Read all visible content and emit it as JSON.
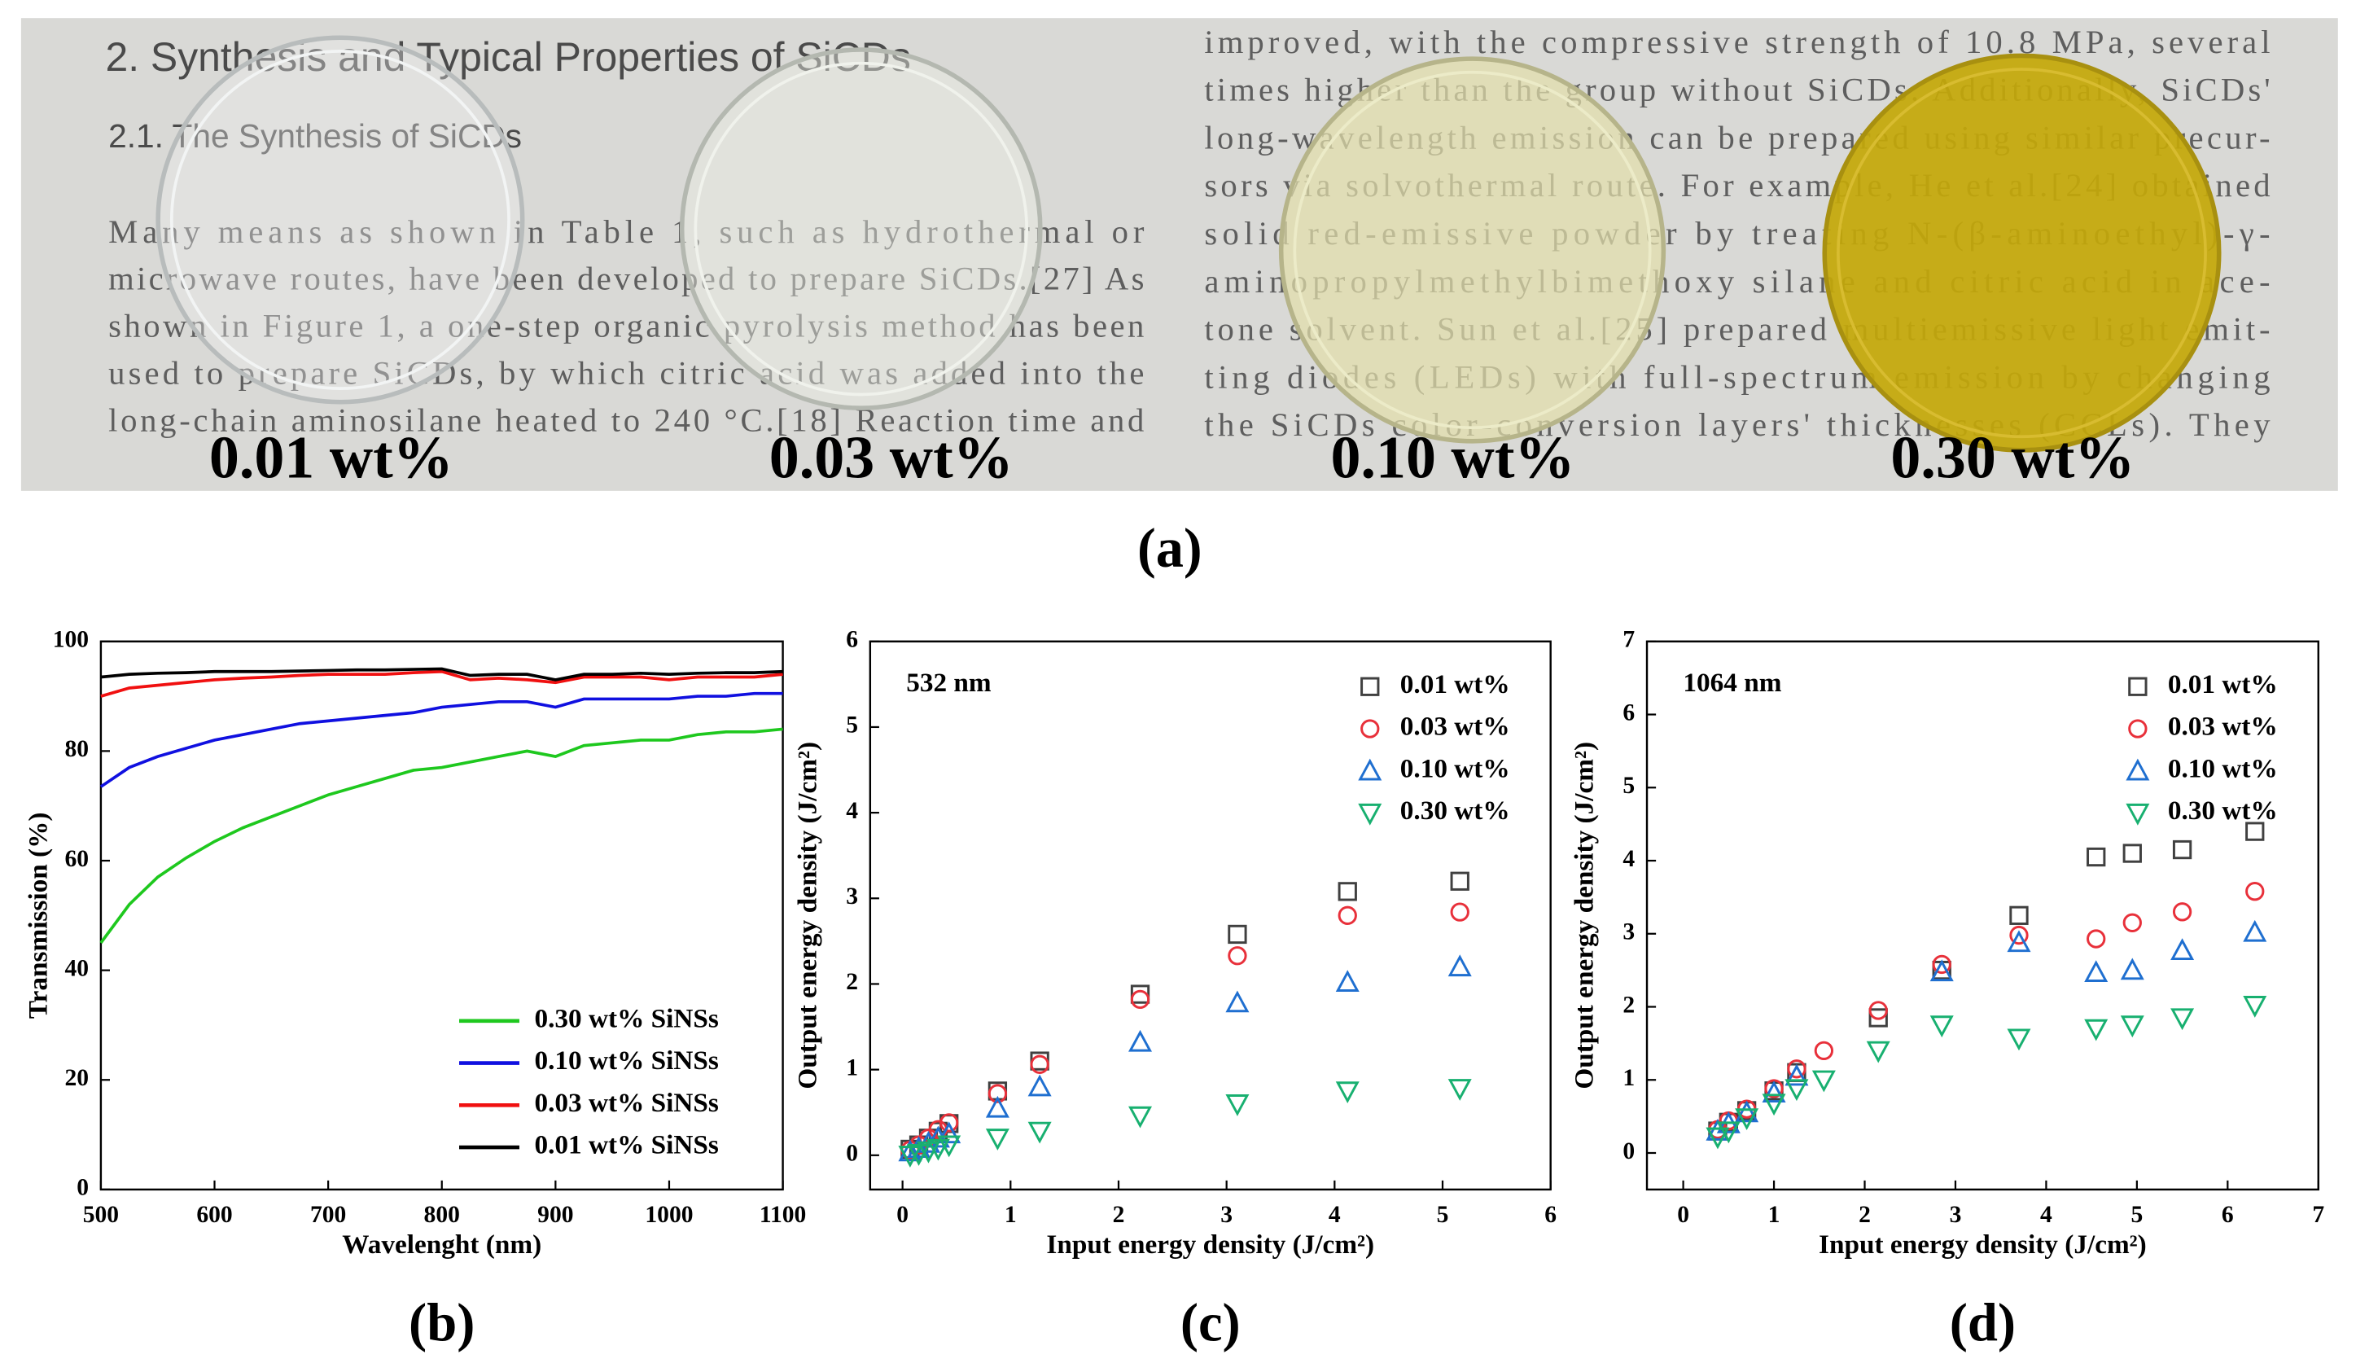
{
  "photo": {
    "heading": "2. Synthesis and Typical Properties of SiCDs",
    "subheading": "2.1. The Synthesis of SiCDs",
    "left_lines": [
      "Many means as shown in Table 1, such as hydrothermal or",
      "microwave routes, have been developed to prepare SiCDs.[27] As",
      "shown in Figure 1, a one-step organic pyrolysis method has been",
      "used to prepare SiCDs, by which citric acid was added into the",
      "long-chain aminosilane heated to 240 °C.[18] Reaction time and"
    ],
    "right_lines": [
      "improved, with the compressive strength of 10.8 MPa, several",
      "times higher than the group without SiCDs. Additionally, SiCDs'",
      "long-wavelength emission can be prepared using similar precur-",
      "sors via solvothermal route. For example, He et al.[24] obtained",
      "solid red-emissive powder by treating N-(β-aminoethyl)-γ-",
      "aminopropylmethylbimethoxy silane and citric acid in ace-",
      "tone solvent. Sun et al.[25] prepared multiemissive light emit-",
      "ting diodes (LEDs) with full-spectrum emission by changing",
      "the SiCDs color-conversion layers' thicknesses (CCLs). They"
    ],
    "sample_labels": [
      "0.01 wt%",
      "0.03 wt%",
      "0.10 wt%",
      "0.30 wt%"
    ],
    "panel_label": "(a)"
  },
  "chart_data": [
    {
      "type": "line",
      "panel_label": "(b)",
      "xlabel": "Wavelenght (nm)",
      "ylabel": "Transmission (%)",
      "x": [
        500,
        525,
        550,
        575,
        600,
        625,
        650,
        675,
        700,
        725,
        750,
        775,
        800,
        825,
        850,
        875,
        900,
        925,
        950,
        975,
        1000,
        1025,
        1050,
        1075,
        1100
      ],
      "xlim": [
        500,
        1100
      ],
      "ylim": [
        0,
        100
      ],
      "xticks": [
        500,
        600,
        700,
        800,
        900,
        1000,
        1100
      ],
      "yticks": [
        0,
        20,
        40,
        60,
        80,
        100
      ],
      "legend": "lower right",
      "series": [
        {
          "name": "0.30 wt% SiNSs",
          "color": "#1ec81e",
          "values": [
            45,
            52,
            57,
            60.5,
            63.5,
            66,
            68,
            70,
            72,
            73.5,
            75,
            76.5,
            77,
            78,
            79,
            80,
            79,
            81,
            81.5,
            82,
            82,
            83,
            83.5,
            83.5,
            84
          ]
        },
        {
          "name": "0.10 wt% SiNSs",
          "color": "#1010e0",
          "values": [
            73.5,
            77,
            79,
            80.5,
            82,
            83,
            84,
            85,
            85.5,
            86,
            86.5,
            87,
            88,
            88.5,
            89,
            89,
            88,
            89.5,
            89.5,
            89.5,
            89.5,
            90,
            90,
            90.5,
            90.5
          ]
        },
        {
          "name": "0.03 wt% SiNSs",
          "color": "#f01010",
          "values": [
            90,
            91.5,
            92,
            92.5,
            93,
            93.3,
            93.5,
            93.8,
            94,
            94,
            94,
            94.3,
            94.5,
            93,
            93.3,
            93,
            92.5,
            93.5,
            93.5,
            93.5,
            93,
            93.5,
            93.5,
            93.5,
            94
          ]
        },
        {
          "name": "0.01 wt% SiNSs",
          "color": "#000000",
          "values": [
            93.5,
            94,
            94.2,
            94.3,
            94.5,
            94.5,
            94.5,
            94.6,
            94.7,
            94.8,
            94.8,
            94.9,
            95,
            93.8,
            94,
            94,
            93,
            94,
            94,
            94.2,
            94,
            94.2,
            94.3,
            94.3,
            94.5
          ]
        }
      ]
    },
    {
      "type": "scatter",
      "panel_label": "(c)",
      "annotation": "532 nm",
      "xlabel": "Input energy density (J/cm²)",
      "ylabel": "Output energy density (J/cm²)",
      "x": [
        0.07,
        0.15,
        0.24,
        0.33,
        0.43,
        0.88,
        1.27,
        2.2,
        3.1,
        4.12,
        5.16
      ],
      "xlim": [
        -0.3,
        6
      ],
      "ylim": [
        -0.4,
        6
      ],
      "xticks": [
        0,
        1,
        2,
        3,
        4,
        5,
        6
      ],
      "yticks": [
        0,
        1,
        2,
        3,
        4,
        5,
        6
      ],
      "legend": "upper right",
      "series": [
        {
          "name": "0.01 wt%",
          "color": "#404040",
          "marker": "square",
          "values": [
            0.07,
            0.12,
            0.2,
            0.28,
            0.37,
            0.75,
            1.1,
            1.88,
            2.58,
            3.08,
            3.2
          ]
        },
        {
          "name": "0.03 wt%",
          "color": "#e8303a",
          "marker": "circle",
          "values": [
            0.06,
            0.12,
            0.2,
            0.3,
            0.38,
            0.72,
            1.06,
            1.82,
            2.33,
            2.8,
            2.84
          ]
        },
        {
          "name": "0.10 wt%",
          "color": "#1f6fd0",
          "marker": "triangle-up",
          "values": [
            0.04,
            0.08,
            0.14,
            0.2,
            0.25,
            0.55,
            0.8,
            1.32,
            1.78,
            2.02,
            2.2
          ]
        },
        {
          "name": "0.30 wt%",
          "color": "#18b070",
          "marker": "triangle-down",
          "values": [
            0,
            0.02,
            0.05,
            0.08,
            0.12,
            0.2,
            0.28,
            0.46,
            0.6,
            0.75,
            0.78
          ]
        }
      ]
    },
    {
      "type": "scatter",
      "panel_label": "(d)",
      "annotation": "1064 nm",
      "xlabel": "Input energy density (J/cm²)",
      "ylabel": "Output energy density (J/cm²)",
      "x": [
        0.38,
        0.5,
        0.7,
        1.0,
        1.25,
        1.55,
        2.15,
        2.85,
        3.7,
        4.55,
        4.95,
        5.5,
        6.3
      ],
      "xlim": [
        -0.4,
        7
      ],
      "ylim": [
        -0.5,
        7
      ],
      "xticks": [
        0,
        1,
        2,
        3,
        4,
        5,
        6,
        7
      ],
      "yticks": [
        0,
        1,
        2,
        3,
        4,
        5,
        6,
        7
      ],
      "legend": "upper right",
      "series": [
        {
          "name": "0.01 wt%",
          "color": "#404040",
          "marker": "square",
          "values": [
            0.3,
            0.42,
            0.58,
            0.85,
            1.1,
            null,
            1.85,
            2.5,
            3.25,
            4.05,
            4.1,
            4.15,
            4.4
          ]
        },
        {
          "name": "0.03 wt%",
          "color": "#e8303a",
          "marker": "circle",
          "values": [
            0.32,
            0.44,
            0.6,
            0.88,
            1.15,
            1.4,
            1.95,
            2.58,
            2.98,
            2.93,
            3.15,
            3.3,
            3.58
          ]
        },
        {
          "name": "0.10 wt%",
          "color": "#1f6fd0",
          "marker": "triangle-up",
          "values": [
            0.3,
            0.4,
            0.55,
            0.82,
            1.05,
            null,
            null,
            2.48,
            2.88,
            2.47,
            2.5,
            2.77,
            3.02
          ]
        },
        {
          "name": "0.30 wt%",
          "color": "#18b070",
          "marker": "triangle-down",
          "values": [
            0.22,
            0.3,
            0.48,
            0.68,
            0.88,
            1.0,
            1.4,
            1.75,
            1.57,
            1.7,
            1.75,
            1.85,
            2.02
          ]
        }
      ]
    }
  ]
}
